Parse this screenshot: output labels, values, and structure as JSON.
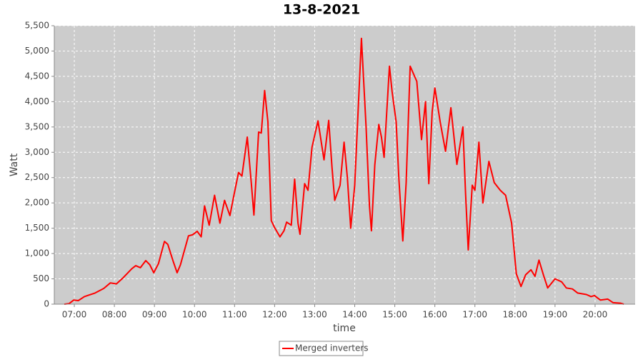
{
  "chart_data": {
    "type": "line",
    "title": "13-8-2021",
    "x_label": "time",
    "y_label": "Watt",
    "x": [
      "06:45",
      "06:52",
      "06:59",
      "07:06",
      "07:15",
      "07:31",
      "07:44",
      "07:54",
      "08:03",
      "08:13",
      "08:26",
      "08:32",
      "08:39",
      "08:47",
      "08:53",
      "08:59",
      "09:06",
      "09:15",
      "09:20",
      "09:28",
      "09:34",
      "09:39",
      "09:51",
      "09:57",
      "10:04",
      "10:10",
      "10:15",
      "10:22",
      "10:30",
      "10:38",
      "10:45",
      "10:53",
      "10:59",
      "11:06",
      "11:11",
      "11:19",
      "11:25",
      "11:29",
      "11:36",
      "11:40",
      "11:45",
      "11:50",
      "11:55",
      "12:00",
      "12:08",
      "12:14",
      "12:18",
      "12:25",
      "12:30",
      "12:35",
      "12:38",
      "12:45",
      "12:50",
      "12:56",
      "13:05",
      "13:14",
      "13:21",
      "13:26",
      "13:30",
      "13:38",
      "13:44",
      "13:49",
      "13:54",
      "14:00",
      "14:10",
      "14:17",
      "14:22",
      "14:25",
      "14:30",
      "14:36",
      "14:40",
      "14:44",
      "14:52",
      "14:56",
      "15:02",
      "15:06",
      "15:12",
      "15:17",
      "15:23",
      "15:33",
      "15:40",
      "15:46",
      "15:51",
      "15:56",
      "16:00",
      "16:08",
      "16:16",
      "16:24",
      "16:33",
      "16:42",
      "16:46",
      "16:50",
      "16:56",
      "17:00",
      "17:06",
      "17:12",
      "17:21",
      "17:29",
      "17:38",
      "17:46",
      "17:55",
      "18:02",
      "18:09",
      "18:16",
      "18:24",
      "18:30",
      "18:36",
      "18:43",
      "18:49",
      "19:00",
      "19:10",
      "19:17",
      "19:26",
      "19:34",
      "19:47",
      "19:54",
      "19:59",
      "20:08",
      "20:19",
      "20:27",
      "20:38",
      "20:43"
    ],
    "series": [
      {
        "name": "Merged inverters",
        "color": "#ff0000",
        "values": [
          0,
          10,
          80,
          70,
          150,
          220,
          310,
          420,
          400,
          520,
          700,
          760,
          720,
          860,
          780,
          620,
          800,
          1240,
          1180,
          850,
          620,
          780,
          1350,
          1370,
          1440,
          1330,
          1940,
          1560,
          2150,
          1600,
          2050,
          1750,
          2150,
          2600,
          2530,
          3300,
          2400,
          1760,
          3400,
          3380,
          4220,
          3600,
          1650,
          1510,
          1330,
          1450,
          1620,
          1560,
          2470,
          1600,
          1380,
          2380,
          2250,
          3100,
          3620,
          2850,
          3630,
          2700,
          2050,
          2350,
          3200,
          2500,
          1500,
          2350,
          5250,
          3500,
          1950,
          1450,
          2750,
          3550,
          3300,
          2900,
          4700,
          4200,
          3600,
          2500,
          1250,
          2400,
          4700,
          4400,
          3250,
          4000,
          2380,
          3800,
          4270,
          3600,
          3020,
          3880,
          2760,
          3500,
          2200,
          1070,
          2350,
          2250,
          3200,
          2000,
          2820,
          2400,
          2250,
          2150,
          1600,
          600,
          350,
          580,
          680,
          550,
          870,
          560,
          320,
          500,
          440,
          320,
          300,
          220,
          190,
          150,
          170,
          80,
          100,
          30,
          20,
          0
        ]
      }
    ],
    "xlim": [
      "06:30",
      "21:00"
    ],
    "xticks": [
      "07:00",
      "08:00",
      "09:00",
      "10:00",
      "11:00",
      "12:00",
      "13:00",
      "14:00",
      "15:00",
      "16:00",
      "17:00",
      "18:00",
      "19:00",
      "20:00"
    ],
    "ylim": [
      0,
      5500
    ],
    "yticks": [
      0,
      500,
      {
        "value": 1000,
        "label": "1,000"
      },
      {
        "value": 1500,
        "label": "1,500"
      },
      {
        "value": 2000,
        "label": "2,000"
      },
      {
        "value": 2500,
        "label": "2,500"
      },
      {
        "value": 3000,
        "label": "3,000"
      },
      {
        "value": 3500,
        "label": "3,500"
      },
      {
        "value": 4000,
        "label": "4,000"
      },
      {
        "value": 4500,
        "label": "4,500"
      },
      {
        "value": 5000,
        "label": "5,000"
      },
      {
        "value": 5500,
        "label": "5,500"
      }
    ],
    "grid": true
  }
}
